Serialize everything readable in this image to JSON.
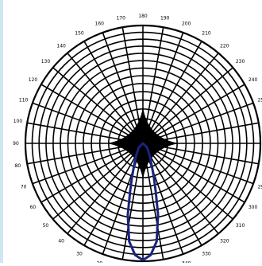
{
  "chart_data": {
    "type": "polar",
    "title": "",
    "angle_labels": [
      "180",
      "190",
      "200",
      "210",
      "220",
      "230",
      "240",
      "250",
      "260",
      "270",
      "280",
      "290",
      "300",
      "310",
      "320",
      "330",
      "340",
      "350",
      "0",
      "10",
      "20",
      "30",
      "40",
      "50",
      "60",
      "70",
      "80",
      "90",
      "100",
      "110",
      "120",
      "130",
      "140",
      "150",
      "160",
      "170"
    ],
    "rings": 14,
    "spokes": 36,
    "series": [
      {
        "color": "#1a237e",
        "points": [
          {
            "angle": 0,
            "r": 0.99
          },
          {
            "angle": 4,
            "r": 0.95
          },
          {
            "angle": 8,
            "r": 0.84
          },
          {
            "angle": 12,
            "r": 0.62
          },
          {
            "angle": 15,
            "r": 0.42
          },
          {
            "angle": 18,
            "r": 0.3
          },
          {
            "angle": 22,
            "r": 0.2
          },
          {
            "angle": 30,
            "r": 0.11
          },
          {
            "angle": 45,
            "r": 0.05
          },
          {
            "angle": 90,
            "r": 0.0
          },
          {
            "angle": 270,
            "r": 0.0
          },
          {
            "angle": 315,
            "r": 0.05
          },
          {
            "angle": 330,
            "r": 0.11
          },
          {
            "angle": 338,
            "r": 0.2
          },
          {
            "angle": 342,
            "r": 0.3
          },
          {
            "angle": 345,
            "r": 0.42
          },
          {
            "angle": 348,
            "r": 0.62
          },
          {
            "angle": 352,
            "r": 0.84
          },
          {
            "angle": 356,
            "r": 0.95
          }
        ]
      }
    ]
  }
}
